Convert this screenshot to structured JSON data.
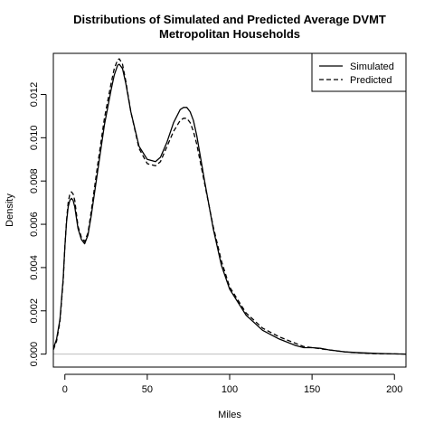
{
  "chart_data": {
    "type": "line",
    "title_lines": [
      "Distributions of Simulated and Predicted Average DVMT",
      "Metropolitan Households"
    ],
    "xlabel": "Miles",
    "ylabel": "Density",
    "xlim": [
      -7,
      207
    ],
    "ylim": [
      -0.0006,
      0.0139
    ],
    "x_ticks": [
      0,
      50,
      100,
      150,
      200
    ],
    "y_ticks": [
      0.0,
      0.002,
      0.004,
      0.006,
      0.008,
      0.01,
      0.012
    ],
    "y_tick_labels": [
      "0.000",
      "0.002",
      "0.004",
      "0.006",
      "0.008",
      "0.010",
      "0.012"
    ],
    "zero_line": true,
    "legend_position": "top-right",
    "series": [
      {
        "name": "Simulated",
        "line_style": "solid",
        "color": "#000000",
        "x": [
          -7,
          -5,
          -3,
          -1,
          0,
          1,
          2,
          3,
          4,
          5,
          6,
          7,
          8,
          10,
          12,
          14,
          16,
          20,
          24,
          28,
          30,
          32,
          33,
          35,
          37,
          40,
          45,
          50,
          55,
          58,
          62,
          66,
          70,
          72,
          74,
          76,
          78,
          80,
          85,
          90,
          95,
          100,
          110,
          120,
          130,
          140,
          145,
          150,
          155,
          160,
          170,
          180,
          190,
          200,
          207
        ],
        "y": [
          0.00025,
          0.0007,
          0.0016,
          0.0035,
          0.005,
          0.0061,
          0.0068,
          0.0071,
          0.0072,
          0.0071,
          0.0068,
          0.0063,
          0.0058,
          0.0053,
          0.0051,
          0.0055,
          0.0064,
          0.0085,
          0.0106,
          0.0122,
          0.0129,
          0.01335,
          0.0134,
          0.0132,
          0.0125,
          0.0112,
          0.0096,
          0.009,
          0.0089,
          0.0091,
          0.0098,
          0.0107,
          0.0113,
          0.0114,
          0.0114,
          0.0112,
          0.0108,
          0.0101,
          0.0079,
          0.0058,
          0.0041,
          0.003,
          0.0018,
          0.0011,
          0.0007,
          0.0004,
          0.0003,
          0.0003,
          0.00027,
          0.0002,
          0.0001,
          6e-05,
          3e-05,
          1e-05,
          0.0
        ]
      },
      {
        "name": "Predicted",
        "line_style": "dashed",
        "color": "#000000",
        "x": [
          -7,
          -5,
          -3,
          -1,
          0,
          1,
          2,
          3,
          4,
          5,
          6,
          7,
          8,
          10,
          12,
          14,
          16,
          20,
          24,
          28,
          30,
          32,
          33,
          35,
          37,
          40,
          45,
          50,
          55,
          58,
          62,
          66,
          70,
          72,
          74,
          76,
          78,
          80,
          85,
          90,
          95,
          100,
          110,
          120,
          130,
          140,
          145,
          150,
          155,
          160,
          170,
          180,
          190,
          200,
          207
        ],
        "y": [
          0.0002,
          0.0006,
          0.0015,
          0.0034,
          0.005,
          0.0062,
          0.007,
          0.0074,
          0.0075,
          0.0074,
          0.0071,
          0.0065,
          0.0059,
          0.0054,
          0.0052,
          0.0056,
          0.0066,
          0.0088,
          0.0109,
          0.0125,
          0.0132,
          0.0136,
          0.01365,
          0.0134,
          0.0126,
          0.0112,
          0.0095,
          0.0088,
          0.0087,
          0.0089,
          0.0096,
          0.0103,
          0.0108,
          0.0109,
          0.0109,
          0.0107,
          0.0103,
          0.0097,
          0.0078,
          0.0059,
          0.0043,
          0.0031,
          0.0019,
          0.0012,
          0.0008,
          0.0005,
          0.00035,
          0.0003,
          0.00025,
          0.0002,
          0.0001,
          5e-05,
          2e-05,
          1e-05,
          0.0
        ]
      }
    ]
  }
}
